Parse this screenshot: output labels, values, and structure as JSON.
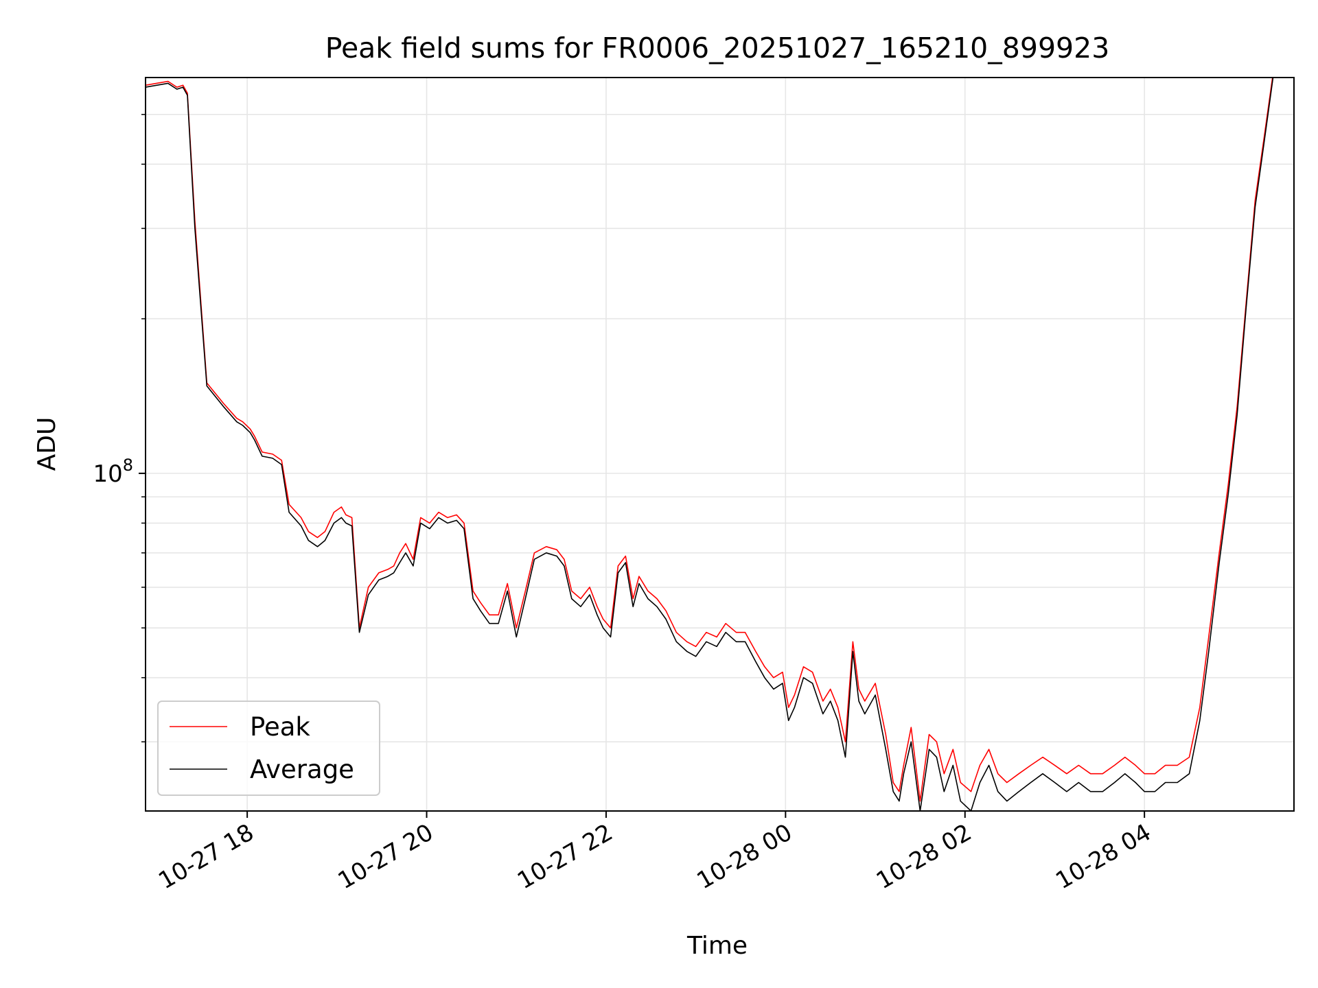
{
  "chart_data": {
    "type": "line",
    "title": "Peak field sums for FR0006_20251027_165210_899923",
    "xlabel": "Time",
    "ylabel": "ADU",
    "y_scale": "log",
    "y_major_tick": {
      "value": 100000000,
      "base": "10",
      "exponent": "8"
    },
    "ylim": [
      22000000,
      590000000
    ],
    "xlim": [
      "2025-10-27 16:52",
      "2025-10-28 05:40"
    ],
    "x_ticks": [
      {
        "value": "2025-10-27 18:00",
        "label": "10-27 18"
      },
      {
        "value": "2025-10-27 20:00",
        "label": "10-27 20"
      },
      {
        "value": "2025-10-27 22:00",
        "label": "10-27 22"
      },
      {
        "value": "2025-10-28 00:00",
        "label": "10-28 00"
      },
      {
        "value": "2025-10-28 02:00",
        "label": "10-28 02"
      },
      {
        "value": "2025-10-28 04:00",
        "label": "10-28 04"
      }
    ],
    "grid": true,
    "legend_position": "lower-left",
    "series": [
      {
        "name": "Peak",
        "color": "#ff0000"
      },
      {
        "name": "Average",
        "color": "#000000"
      }
    ],
    "x": [
      "2025-10-27 16:52",
      "2025-10-27 17:07",
      "2025-10-27 17:13",
      "2025-10-27 17:17",
      "2025-10-27 17:20",
      "2025-10-27 17:25",
      "2025-10-27 17:33",
      "2025-10-27 17:44",
      "2025-10-27 17:53",
      "2025-10-27 17:57",
      "2025-10-27 18:02",
      "2025-10-27 18:05",
      "2025-10-27 18:10",
      "2025-10-27 18:17",
      "2025-10-27 18:23",
      "2025-10-27 18:28",
      "2025-10-27 18:36",
      "2025-10-27 18:41",
      "2025-10-27 18:47",
      "2025-10-27 18:52",
      "2025-10-27 18:58",
      "2025-10-27 19:03",
      "2025-10-27 19:06",
      "2025-10-27 19:10",
      "2025-10-27 19:15",
      "2025-10-27 19:21",
      "2025-10-27 19:28",
      "2025-10-27 19:34",
      "2025-10-27 19:38",
      "2025-10-27 19:42",
      "2025-10-27 19:46",
      "2025-10-27 19:51",
      "2025-10-27 19:56",
      "2025-10-27 20:02",
      "2025-10-27 20:08",
      "2025-10-27 20:14",
      "2025-10-27 20:20",
      "2025-10-27 20:25",
      "2025-10-27 20:31",
      "2025-10-27 20:36",
      "2025-10-27 20:42",
      "2025-10-27 20:48",
      "2025-10-27 20:54",
      "2025-10-27 21:00",
      "2025-10-27 21:06",
      "2025-10-27 21:12",
      "2025-10-27 21:20",
      "2025-10-27 21:27",
      "2025-10-27 21:32",
      "2025-10-27 21:37",
      "2025-10-27 21:43",
      "2025-10-27 21:49",
      "2025-10-27 21:54",
      "2025-10-27 21:58",
      "2025-10-27 22:03",
      "2025-10-27 22:08",
      "2025-10-27 22:13",
      "2025-10-27 22:18",
      "2025-10-27 22:22",
      "2025-10-27 22:28",
      "2025-10-27 22:34",
      "2025-10-27 22:40",
      "2025-10-27 22:47",
      "2025-10-27 22:54",
      "2025-10-27 23:00",
      "2025-10-27 23:07",
      "2025-10-27 23:14",
      "2025-10-27 23:20",
      "2025-10-27 23:27",
      "2025-10-27 23:33",
      "2025-10-27 23:40",
      "2025-10-27 23:46",
      "2025-10-27 23:52",
      "2025-10-27 23:58",
      "2025-10-28 00:02",
      "2025-10-28 00:06",
      "2025-10-28 00:12",
      "2025-10-28 00:18",
      "2025-10-28 00:25",
      "2025-10-28 00:30",
      "2025-10-28 00:35",
      "2025-10-28 00:40",
      "2025-10-28 00:45",
      "2025-10-28 00:49",
      "2025-10-28 00:53",
      "2025-10-28 01:00",
      "2025-10-28 01:07",
      "2025-10-28 01:12",
      "2025-10-28 01:16",
      "2025-10-28 01:19",
      "2025-10-28 01:24",
      "2025-10-28 01:30",
      "2025-10-28 01:36",
      "2025-10-28 01:41",
      "2025-10-28 01:46",
      "2025-10-28 01:52",
      "2025-10-28 01:57",
      "2025-10-28 02:04",
      "2025-10-28 02:10",
      "2025-10-28 02:16",
      "2025-10-28 02:22",
      "2025-10-28 02:28",
      "2025-10-28 02:36",
      "2025-10-28 02:44",
      "2025-10-28 02:52",
      "2025-10-28 03:00",
      "2025-10-28 03:08",
      "2025-10-28 03:16",
      "2025-10-28 03:24",
      "2025-10-28 03:32",
      "2025-10-28 03:40",
      "2025-10-28 03:47",
      "2025-10-28 03:54",
      "2025-10-28 04:00",
      "2025-10-28 04:07",
      "2025-10-28 04:14",
      "2025-10-28 04:22",
      "2025-10-28 04:30",
      "2025-10-28 04:37",
      "2025-10-28 04:43",
      "2025-10-28 04:50",
      "2025-10-28 04:56",
      "2025-10-28 05:02",
      "2025-10-28 05:08",
      "2025-10-28 05:14",
      "2025-10-28 05:20",
      "2025-10-28 05:26",
      "2025-10-28 05:32",
      "2025-10-28 05:35",
      "2025-10-28 05:40"
    ],
    "average": [
      565000000,
      575000000,
      560000000,
      565000000,
      545000000,
      300000000,
      148000000,
      135000000,
      126000000,
      124000000,
      120000000,
      116000000,
      108000000,
      107000000,
      104000000,
      84000000,
      79000000,
      74000000,
      72000000,
      74000000,
      80000000,
      82000000,
      80000000,
      79000000,
      49000000,
      58000000,
      62000000,
      63000000,
      64000000,
      67000000,
      70000000,
      66000000,
      80000000,
      78000000,
      82000000,
      80000000,
      81000000,
      78000000,
      57000000,
      54000000,
      51000000,
      51000000,
      59000000,
      48000000,
      57000000,
      68000000,
      70000000,
      69000000,
      66000000,
      57000000,
      55000000,
      58000000,
      53000000,
      50000000,
      48000000,
      64000000,
      67000000,
      55000000,
      61000000,
      57000000,
      55000000,
      52000000,
      47000000,
      45000000,
      44000000,
      47000000,
      46000000,
      49000000,
      47000000,
      47000000,
      43000000,
      40000000,
      38000000,
      39000000,
      33000000,
      35000000,
      40000000,
      39000000,
      34000000,
      36000000,
      33000000,
      28000000,
      45000000,
      36000000,
      34000000,
      37000000,
      29000000,
      24000000,
      23000000,
      26000000,
      30000000,
      22000000,
      29000000,
      28000000,
      24000000,
      27000000,
      23000000,
      22000000,
      25000000,
      27000000,
      24000000,
      23000000,
      24000000,
      25000000,
      26000000,
      25000000,
      24000000,
      25000000,
      24000000,
      24000000,
      25000000,
      26000000,
      25000000,
      24000000,
      24000000,
      25000000,
      25000000,
      26000000,
      33000000,
      45000000,
      67000000,
      91000000,
      130000000,
      210000000,
      330000000,
      440000000,
      590000000
    ],
    "peak": [
      570000000,
      580000000,
      565000000,
      570000000,
      550000000,
      310000000,
      150000000,
      137000000,
      128000000,
      126000000,
      122000000,
      118000000,
      110000000,
      109000000,
      106000000,
      87000000,
      82000000,
      77000000,
      75000000,
      77000000,
      84000000,
      86000000,
      83000000,
      82000000,
      50000000,
      60000000,
      64000000,
      65000000,
      66000000,
      70000000,
      73000000,
      68000000,
      82000000,
      80000000,
      84000000,
      82000000,
      83000000,
      80000000,
      59000000,
      56000000,
      53000000,
      53000000,
      61000000,
      50000000,
      59000000,
      70000000,
      72000000,
      71000000,
      68000000,
      59000000,
      57000000,
      60000000,
      55000000,
      52000000,
      50000000,
      66000000,
      69000000,
      57000000,
      63000000,
      59000000,
      57000000,
      54000000,
      49000000,
      47000000,
      46000000,
      49000000,
      48000000,
      51000000,
      49000000,
      49000000,
      45000000,
      42000000,
      40000000,
      41000000,
      35000000,
      37000000,
      42000000,
      41000000,
      36000000,
      38000000,
      35000000,
      30000000,
      47000000,
      38000000,
      36000000,
      39000000,
      31000000,
      25000000,
      24000000,
      27000000,
      32000000,
      23000000,
      31000000,
      30000000,
      26000000,
      29000000,
      25000000,
      24000000,
      27000000,
      29000000,
      26000000,
      25000000,
      26000000,
      27000000,
      28000000,
      27000000,
      26000000,
      27000000,
      26000000,
      26000000,
      27000000,
      28000000,
      27000000,
      26000000,
      26000000,
      27000000,
      27000000,
      28000000,
      35000000,
      48000000,
      70000000,
      95000000,
      135000000,
      215000000,
      340000000,
      450000000,
      600000000
    ]
  },
  "legend": {
    "items": [
      {
        "label": "Peak",
        "color": "#ff0000"
      },
      {
        "label": "Average",
        "color": "#000000"
      }
    ]
  }
}
